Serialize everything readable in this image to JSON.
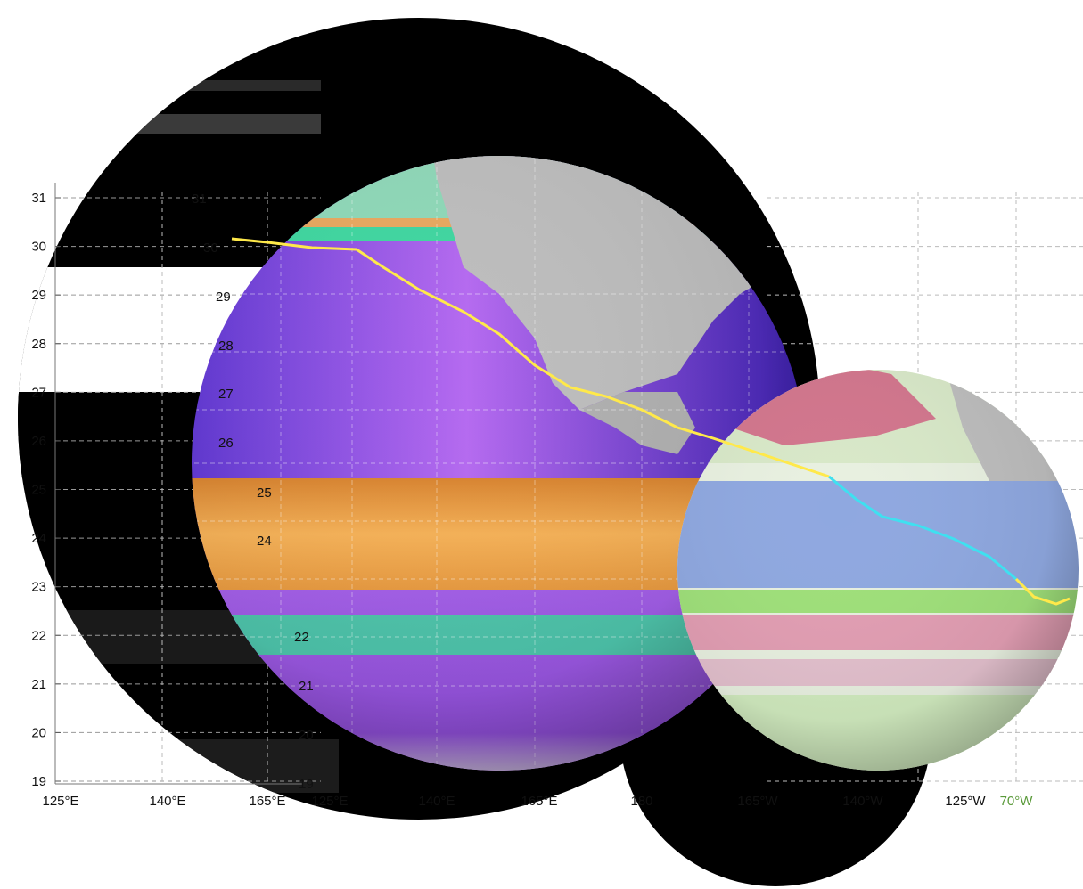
{
  "chart_data": {
    "type": "line",
    "title": "",
    "y_ticks": [
      "19",
      "20",
      "21",
      "22",
      "23",
      "24",
      "25",
      "26",
      "27",
      "28",
      "29",
      "30",
      "31"
    ],
    "x_ticks": [
      "125°E",
      "140°E",
      "165°E",
      "125°E",
      "140°E",
      "165°E",
      "180",
      "165°W",
      "140°W",
      "125°W",
      "70°W"
    ],
    "ylim": [
      19,
      31
    ],
    "grid": true,
    "series": [
      {
        "color": "#ffe94a"
      },
      {
        "color": "#3fe0f0"
      }
    ]
  },
  "colors": {
    "warm_band": "#f0a040",
    "violet_ocean": "#9b4de0",
    "deep_blue": "#3a1fb0",
    "teal_band": "#40d6a0",
    "green_layer": "#9fe07a",
    "pink_layer": "#d0507a",
    "land_grey": "#bdbdbd",
    "blue_layer": "#8fa8e0",
    "track_yellow": "#ffe94a",
    "track_cyan": "#3fe0f0"
  },
  "icons": [
    "large-globe",
    "small-globe"
  ]
}
